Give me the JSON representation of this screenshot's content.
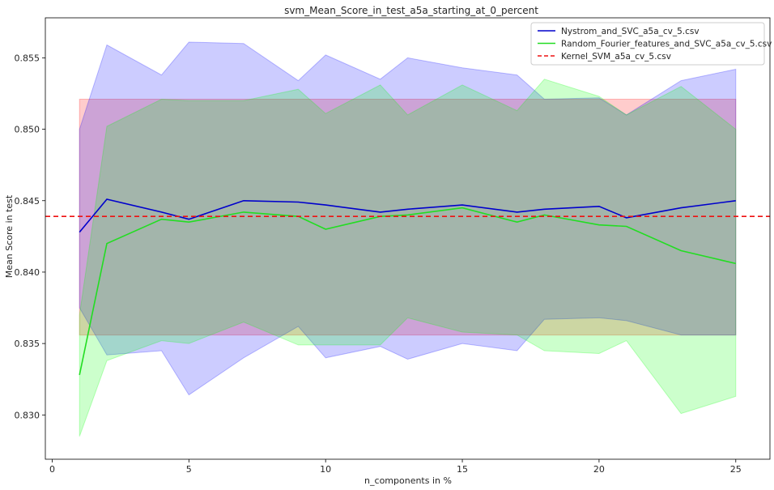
{
  "chart_data": {
    "type": "line",
    "title": "svm_Mean_Score_in_test_a5a_starting_at_0_percent",
    "xlabel": "n_components in %",
    "ylabel": "Mean Score in test",
    "xlim": [
      -0.25,
      26.25
    ],
    "ylim": [
      0.8269,
      0.8578
    ],
    "xticks": [
      0,
      5,
      10,
      15,
      20,
      25
    ],
    "yticks": [
      0.83,
      0.835,
      0.84,
      0.845,
      0.85,
      0.855
    ],
    "ytick_labels": [
      "0.830",
      "0.835",
      "0.840",
      "0.845",
      "0.850",
      "0.855"
    ],
    "legend_position": "top-right",
    "grid": false,
    "series": [
      {
        "name": "Nystrom_and_SVC_a5a_cv_5.csv",
        "style": "solid",
        "color": "#0000cc",
        "band_color": "#0000ff",
        "x": [
          1,
          2,
          4,
          5,
          7,
          9,
          10,
          12,
          13,
          15,
          17,
          18,
          20,
          21,
          23,
          25
        ],
        "values": [
          0.8428,
          0.8451,
          0.8442,
          0.8437,
          0.845,
          0.8449,
          0.8447,
          0.8442,
          0.8444,
          0.8447,
          0.8442,
          0.8444,
          0.8446,
          0.8438,
          0.8445,
          0.845
        ],
        "upper": [
          0.85,
          0.8559,
          0.8538,
          0.8561,
          0.856,
          0.8534,
          0.8552,
          0.8535,
          0.855,
          0.8543,
          0.8538,
          0.8521,
          0.8522,
          0.851,
          0.8534,
          0.8542
        ],
        "lower": [
          0.8375,
          0.8342,
          0.8345,
          0.8314,
          0.834,
          0.8362,
          0.834,
          0.8348,
          0.8339,
          0.835,
          0.8345,
          0.8367,
          0.8368,
          0.8366,
          0.8356,
          0.8356
        ]
      },
      {
        "name": "Random_Fourier_features_and_SVC_a5a_cv_5.csv",
        "style": "solid",
        "color": "#22dd22",
        "band_color": "#00ff00",
        "x": [
          1,
          2,
          4,
          5,
          7,
          9,
          10,
          12,
          13,
          15,
          17,
          18,
          20,
          21,
          23,
          25
        ],
        "values": [
          0.8328,
          0.842,
          0.8437,
          0.8435,
          0.8442,
          0.8439,
          0.843,
          0.8439,
          0.844,
          0.8445,
          0.8435,
          0.844,
          0.8433,
          0.8432,
          0.8415,
          0.8406
        ],
        "upper": [
          0.837,
          0.8502,
          0.8521,
          0.852,
          0.852,
          0.8528,
          0.8511,
          0.8531,
          0.851,
          0.8531,
          0.8513,
          0.8535,
          0.8523,
          0.851,
          0.853,
          0.85
        ],
        "lower": [
          0.8285,
          0.8338,
          0.8352,
          0.835,
          0.8365,
          0.8349,
          0.8349,
          0.8349,
          0.8368,
          0.8358,
          0.8356,
          0.8345,
          0.8343,
          0.8352,
          0.8301,
          0.8313
        ]
      },
      {
        "name": "Kernel_SVM_a5a_cv_5.csv",
        "style": "dashed",
        "color": "#ee1111",
        "band_color": "#ff0000",
        "value": 0.8439,
        "band_x": [
          1,
          25
        ],
        "upper": 0.8521,
        "lower": 0.8356
      }
    ]
  }
}
